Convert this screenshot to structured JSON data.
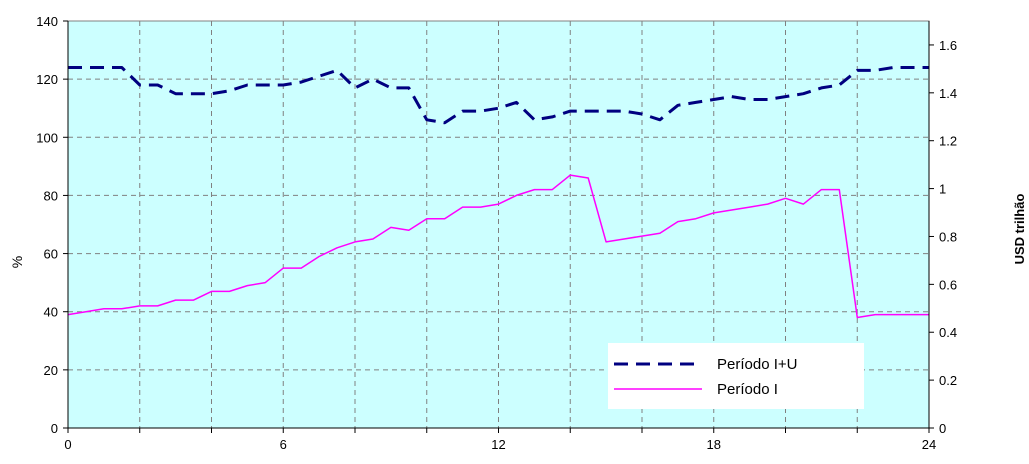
{
  "chart_data": {
    "type": "line",
    "title": "",
    "xlabel": "",
    "ylabel": "%",
    "y2label": "USD trilhão",
    "xlim": [
      0,
      24
    ],
    "ylim": [
      0,
      140
    ],
    "y2lim": [
      0,
      1.7
    ],
    "x_ticks": [
      "0",
      "6",
      "12",
      "18",
      "24"
    ],
    "y_ticks": [
      "0",
      "20",
      "40",
      "60",
      "80",
      "100",
      "120",
      "140"
    ],
    "y2_ticks": [
      "0",
      "0.2",
      "0.4",
      "0.6",
      "0.8",
      "1",
      "1.2",
      "1.4",
      "1.6"
    ],
    "grid": true,
    "background_color": "#ccffff",
    "legend_position": "bottom-right",
    "series": [
      {
        "name": "Período I+U",
        "color": "#000080",
        "style": "dashed",
        "x": [
          0,
          0.5,
          1,
          1.5,
          2,
          2.5,
          3,
          3.5,
          4,
          4.5,
          5,
          5.5,
          6,
          6.5,
          7,
          7.5,
          8,
          8.5,
          9,
          9.5,
          10,
          10.5,
          11,
          11.5,
          12,
          12.5,
          13,
          13.5,
          14,
          14.5,
          15,
          15.5,
          16,
          16.5,
          17,
          17.5,
          18,
          18.5,
          19,
          19.5,
          20,
          20.5,
          21,
          21.5,
          22,
          22.5,
          23,
          23.5,
          24
        ],
        "values": [
          124,
          124,
          124,
          124,
          118,
          118,
          115,
          115,
          115,
          116,
          118,
          118,
          118,
          119,
          121,
          123,
          117,
          120,
          117,
          117,
          106,
          105,
          109,
          109,
          110,
          112,
          106,
          107,
          109,
          109,
          109,
          109,
          108,
          106,
          111,
          112,
          113,
          114,
          113,
          113,
          114,
          115,
          117,
          118,
          123,
          123,
          124,
          124,
          124
        ]
      },
      {
        "name": "Período I",
        "color": "#ff00ff",
        "style": "solid",
        "x": [
          0,
          0.5,
          1,
          1.5,
          2,
          2.5,
          3,
          3.5,
          4,
          4.5,
          5,
          5.5,
          6,
          6.5,
          7,
          7.5,
          8,
          8.5,
          9,
          9.5,
          10,
          10.5,
          11,
          11.5,
          12,
          12.5,
          13,
          13.5,
          14,
          14.5,
          15,
          15.5,
          16,
          16.5,
          17,
          17.5,
          18,
          18.5,
          19,
          19.5,
          20,
          20.5,
          21,
          21.5,
          22,
          22.5,
          23,
          23.5,
          24
        ],
        "values": [
          39,
          40,
          41,
          41,
          42,
          42,
          44,
          44,
          47,
          47,
          49,
          50,
          55,
          55,
          59,
          62,
          64,
          65,
          69,
          68,
          72,
          72,
          76,
          76,
          77,
          80,
          82,
          82,
          87,
          86,
          64,
          65,
          66,
          67,
          71,
          72,
          74,
          75,
          76,
          77,
          79,
          77,
          82,
          82,
          38,
          39,
          39,
          39,
          39
        ]
      }
    ]
  }
}
